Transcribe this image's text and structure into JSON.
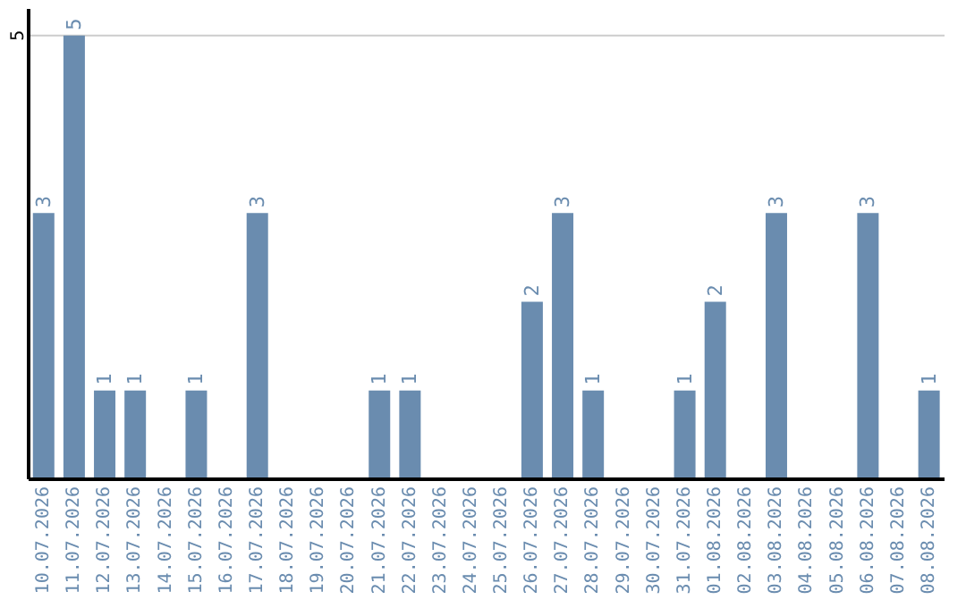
{
  "chart_data": {
    "type": "bar",
    "categories": [
      "10.07.2026",
      "11.07.2026",
      "12.07.2026",
      "13.07.2026",
      "14.07.2026",
      "15.07.2026",
      "16.07.2026",
      "17.07.2026",
      "18.07.2026",
      "19.07.2026",
      "20.07.2026",
      "21.07.2026",
      "22.07.2026",
      "23.07.2026",
      "24.07.2026",
      "25.07.2026",
      "26.07.2026",
      "27.07.2026",
      "28.07.2026",
      "29.07.2026",
      "30.07.2026",
      "31.07.2026",
      "01.08.2026",
      "02.08.2026",
      "03.08.2026",
      "04.08.2026",
      "05.08.2026",
      "06.08.2026",
      "07.08.2026",
      "08.08.2026"
    ],
    "values": [
      3,
      5,
      1,
      1,
      0,
      1,
      0,
      3,
      0,
      0,
      0,
      1,
      1,
      0,
      0,
      0,
      2,
      3,
      1,
      0,
      0,
      1,
      2,
      0,
      3,
      0,
      0,
      3,
      0,
      1
    ],
    "value_labels": [
      "3",
      "5",
      "1",
      "1",
      null,
      "1",
      null,
      "3",
      null,
      null,
      null,
      "1",
      "1",
      null,
      null,
      null,
      "2",
      "3",
      "1",
      null,
      null,
      "1",
      "2",
      null,
      "3",
      null,
      null,
      "3",
      null,
      "1"
    ],
    "color": "#6a8caf",
    "ylim": [
      0,
      5.3
    ],
    "yticks": [
      5
    ],
    "grid": "y"
  }
}
